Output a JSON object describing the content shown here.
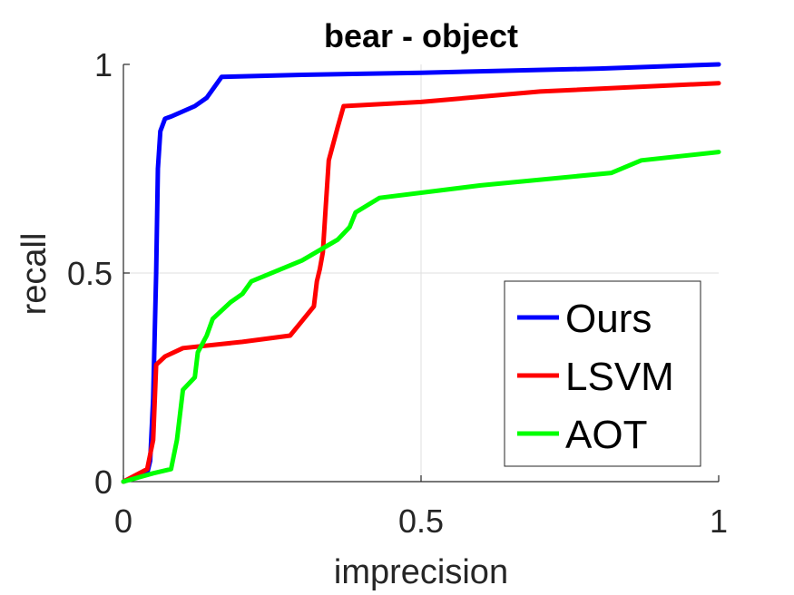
{
  "chart_data": {
    "type": "line",
    "title": "bear - object",
    "xlabel": "imprecision",
    "ylabel": "recall",
    "xlim": [
      0,
      1
    ],
    "ylim": [
      0,
      1
    ],
    "xticks": [
      {
        "value": 0,
        "label": "0"
      },
      {
        "value": 0.5,
        "label": "0.5"
      },
      {
        "value": 1,
        "label": "1"
      }
    ],
    "yticks": [
      {
        "value": 0,
        "label": "0"
      },
      {
        "value": 0.5,
        "label": "0.5"
      },
      {
        "value": 1,
        "label": "1"
      }
    ],
    "grid": true,
    "legend_position": "bottom-right",
    "series": [
      {
        "name": "Ours",
        "color": "#0000ff",
        "points": [
          [
            0,
            0
          ],
          [
            0.04,
            0.02
          ],
          [
            0.045,
            0.05
          ],
          [
            0.05,
            0.2
          ],
          [
            0.055,
            0.5
          ],
          [
            0.058,
            0.75
          ],
          [
            0.062,
            0.84
          ],
          [
            0.07,
            0.87
          ],
          [
            0.08,
            0.875
          ],
          [
            0.12,
            0.9
          ],
          [
            0.14,
            0.92
          ],
          [
            0.165,
            0.97
          ],
          [
            0.3,
            0.975
          ],
          [
            0.5,
            0.98
          ],
          [
            0.8,
            0.99
          ],
          [
            1,
            1
          ]
        ]
      },
      {
        "name": "LSVM",
        "color": "#ff0000",
        "points": [
          [
            0,
            0
          ],
          [
            0.04,
            0.03
          ],
          [
            0.05,
            0.1
          ],
          [
            0.055,
            0.28
          ],
          [
            0.07,
            0.3
          ],
          [
            0.1,
            0.32
          ],
          [
            0.2,
            0.335
          ],
          [
            0.28,
            0.35
          ],
          [
            0.3,
            0.385
          ],
          [
            0.32,
            0.42
          ],
          [
            0.325,
            0.48
          ],
          [
            0.33,
            0.51
          ],
          [
            0.335,
            0.55
          ],
          [
            0.34,
            0.66
          ],
          [
            0.345,
            0.77
          ],
          [
            0.36,
            0.85
          ],
          [
            0.37,
            0.9
          ],
          [
            0.5,
            0.91
          ],
          [
            0.7,
            0.935
          ],
          [
            1,
            0.955
          ]
        ]
      },
      {
        "name": "AOT",
        "color": "#00ff00",
        "points": [
          [
            0,
            0
          ],
          [
            0.05,
            0.02
          ],
          [
            0.08,
            0.03
          ],
          [
            0.09,
            0.1
          ],
          [
            0.1,
            0.22
          ],
          [
            0.12,
            0.25
          ],
          [
            0.125,
            0.31
          ],
          [
            0.14,
            0.35
          ],
          [
            0.15,
            0.39
          ],
          [
            0.18,
            0.43
          ],
          [
            0.2,
            0.45
          ],
          [
            0.215,
            0.48
          ],
          [
            0.3,
            0.53
          ],
          [
            0.36,
            0.58
          ],
          [
            0.38,
            0.61
          ],
          [
            0.39,
            0.645
          ],
          [
            0.43,
            0.68
          ],
          [
            0.6,
            0.71
          ],
          [
            0.82,
            0.74
          ],
          [
            0.87,
            0.77
          ],
          [
            1,
            0.79
          ]
        ]
      }
    ]
  }
}
